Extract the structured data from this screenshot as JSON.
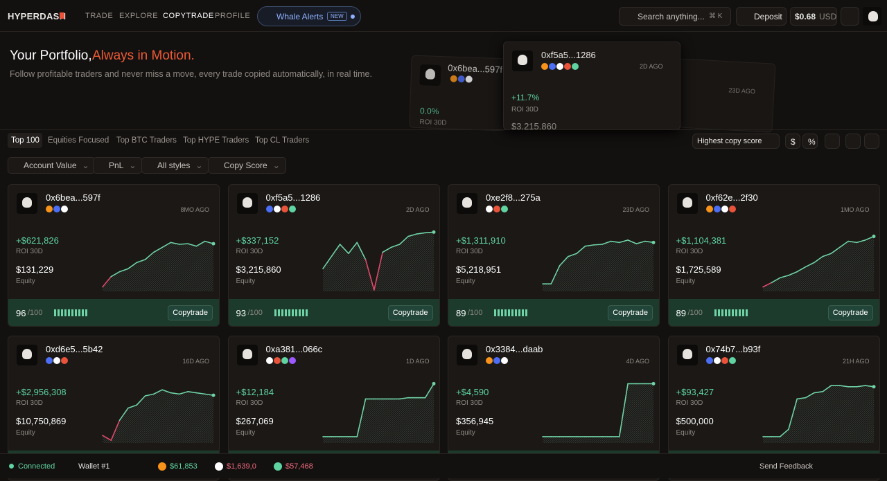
{
  "nav": {
    "brand": "HYPERDASH",
    "links": [
      "TRADE",
      "EXPLORE",
      "COPYTRADE",
      "PROFILE"
    ],
    "alert": "Whale Alerts",
    "alert_badge": "NEW",
    "search": "Search anything...",
    "shortcut": "⌘ K",
    "deposit": "Deposit",
    "balance": "$0.68",
    "currency": "USD"
  },
  "hero": {
    "title": "Your Portfolio,",
    "highlight": "Always in Motion.",
    "subtitle": "Follow profitable traders and never miss a move, every trade copied automatically, in real time.",
    "previews": [
      {
        "address": "0x6bea...597f",
        "roi": "0.0%",
        "roi_label": "ROI 30D"
      },
      {
        "address": "0xf5a5...1286",
        "age": "2D AGO",
        "roi": "+11.7%",
        "roi_label": "ROI 30D",
        "equity": "$3,215,860"
      },
      {
        "age": "23D AGO"
      }
    ]
  },
  "tabs": [
    "Top 100",
    "Equities Focused",
    "Top BTC Traders",
    "Top HYPE Traders",
    "Top CL Traders"
  ],
  "sort": "Highest copy score",
  "units": [
    "$",
    "%"
  ],
  "filters": [
    "Account Value",
    "PnL",
    "All styles",
    "Copy Score"
  ],
  "cards": [
    {
      "address": "0x6bea...597f",
      "age": "8MO AGO",
      "pnl": "+$621,826",
      "roi_label": "ROI 30D",
      "equity": "$131,229",
      "equity_label": "Equity",
      "score": 96,
      "score_max": "/100",
      "action": "Copytrade",
      "sparkline": [
        5,
        22,
        30,
        35,
        45,
        50,
        62,
        70,
        78,
        75,
        76,
        72,
        80,
        76
      ]
    },
    {
      "address": "0xf5a5...1286",
      "age": "2D AGO",
      "pnl": "+$337,152",
      "roi_label": "ROI 30D",
      "equity": "$3,215,860",
      "equity_label": "Equity",
      "score": 93,
      "score_max": "/100",
      "action": "Copytrade",
      "sparkline": [
        35,
        55,
        75,
        60,
        78,
        50,
        0,
        62,
        70,
        75,
        88,
        92,
        94,
        95
      ]
    },
    {
      "address": "0xe2f8...275a",
      "age": "23D AGO",
      "pnl": "+$1,311,910",
      "roi_label": "ROI 30D",
      "equity": "$5,218,951",
      "equity_label": "Equity",
      "score": 89,
      "score_max": "/100",
      "action": "Copytrade",
      "sparkline": [
        10,
        10,
        40,
        55,
        60,
        72,
        74,
        75,
        80,
        78,
        82,
        76,
        80,
        78
      ]
    },
    {
      "address": "0xf62e...2f30",
      "age": "1MO AGO",
      "pnl": "+$1,104,381",
      "roi_label": "ROI 30D",
      "equity": "$1,725,589",
      "equity_label": "Equity",
      "score": 89,
      "score_max": "/100",
      "action": "Copytrade",
      "sparkline": [
        5,
        12,
        20,
        24,
        30,
        38,
        45,
        55,
        60,
        70,
        80,
        78,
        82,
        88
      ]
    },
    {
      "address": "0xd6e5...5b42",
      "age": "16D AGO",
      "pnl": "+$2,956,308",
      "roi_label": "ROI 30D",
      "equity": "$10,750,869",
      "equity_label": "Equity",
      "sparkline": [
        10,
        2,
        35,
        55,
        60,
        75,
        78,
        85,
        80,
        78,
        82,
        80,
        78,
        76
      ]
    },
    {
      "address": "0xa381...066c",
      "age": "1D AGO",
      "pnl": "+$12,184",
      "roi_label": "ROI 30D",
      "equity": "$267,069",
      "equity_label": "Equity",
      "sparkline": [
        8,
        8,
        8,
        8,
        8,
        70,
        70,
        70,
        70,
        70,
        72,
        72,
        72,
        95
      ]
    },
    {
      "address": "0x3384...daab",
      "age": "4D AGO",
      "pnl": "+$4,590",
      "roi_label": "ROI 30D",
      "equity": "$356,945",
      "equity_label": "Equity",
      "sparkline": [
        8,
        8,
        8,
        8,
        8,
        8,
        8,
        8,
        8,
        8,
        95,
        95,
        95,
        95
      ]
    },
    {
      "address": "0x74b7...b93f",
      "age": "21H AGO",
      "pnl": "+$93,427",
      "roi_label": "ROI 30D",
      "equity": "$500,000",
      "equity_label": "Equity",
      "sparkline": [
        8,
        8,
        8,
        20,
        70,
        72,
        80,
        82,
        92,
        92,
        90,
        90,
        92,
        90
      ]
    }
  ],
  "status": {
    "connection": "Connected",
    "wallet": "Wallet #1",
    "prices": [
      "$61,853",
      "$1,639,0",
      "$57,468"
    ],
    "feedback": "Send Feedback"
  }
}
